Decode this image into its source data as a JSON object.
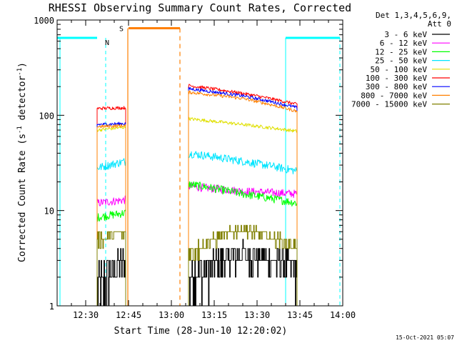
{
  "chart_data": {
    "type": "line",
    "title": "RHESSI Observing Summary Count Rates, Corrected",
    "xlabel": "Start Time (28-Jun-10 12:20:02)",
    "ylabel": "Corrected Count Rate (s",
    "ylabel_sup1": "-1",
    "ylabel_mid": " detector",
    "ylabel_sup2": "-1",
    "ylabel_end": ")",
    "yscale": "log",
    "ylim": [
      1,
      1000
    ],
    "y_ticks": [
      {
        "v": 1,
        "label": "1"
      },
      {
        "v": 10,
        "label": "10"
      },
      {
        "v": 100,
        "label": "100"
      },
      {
        "v": 1000,
        "label": "1000"
      }
    ],
    "xlim": [
      "12:20",
      "14:00"
    ],
    "x_ticks": [
      "12:30",
      "12:45",
      "13:00",
      "13:15",
      "13:30",
      "13:45",
      "14:00"
    ],
    "grid": false,
    "legend_header": [
      "Det 1,3,4,5,6,9,",
      "Att 0"
    ],
    "legend_position": "right",
    "footer_timestamp": "15-Oct-2021 05:07",
    "markers": {
      "N": "N",
      "S": "S"
    },
    "intervals": {
      "night_color": "#00ffff",
      "saa_color": "#ff8000",
      "night_segments": [
        [
          "12:20",
          "12:34"
        ],
        [
          "13:40",
          "13:59"
        ]
      ],
      "night_level": 650,
      "night_lines": [
        "12:21",
        "12:37",
        "13:40",
        "13:59"
      ],
      "saa_segment": [
        "12:45",
        "13:03"
      ],
      "saa_level": 820,
      "saa_lines": [
        "12:45",
        "13:03"
      ]
    },
    "observation_blocks": [
      [
        "12:34",
        "12:44"
      ],
      [
        "13:06",
        "13:44"
      ]
    ],
    "series": [
      {
        "name": "3 - 6 keV",
        "color": "#000000",
        "block1": [
          1.5,
          3
        ],
        "block2": [
          2.0,
          3.5,
          2.5
        ]
      },
      {
        "name": "6 - 12 keV",
        "color": "#ff00ff",
        "block1": [
          12,
          13
        ],
        "block2": [
          18,
          16,
          15
        ]
      },
      {
        "name": "12 - 25 keV",
        "color": "#00ff00",
        "block1": [
          8.5,
          9.5
        ],
        "block2": [
          19,
          15,
          12
        ]
      },
      {
        "name": "25 - 50 keV",
        "color": "#00e5ff",
        "block1": [
          28,
          33
        ],
        "block2": [
          40,
          33,
          26
        ]
      },
      {
        "name": "50 - 100 keV",
        "color": "#e0e000",
        "block1": [
          70,
          75
        ],
        "block2": [
          92,
          80,
          68
        ]
      },
      {
        "name": "100 - 300 keV",
        "color": "#ff0000",
        "block1": [
          118,
          120
        ],
        "block2": [
          205,
          170,
          130
        ]
      },
      {
        "name": "300 - 800 keV",
        "color": "#0000ff",
        "block1": [
          80,
          82
        ],
        "block2": [
          190,
          160,
          120
        ]
      },
      {
        "name": "800 - 7000 keV",
        "color": "#ff8000",
        "block1": [
          76,
          78
        ],
        "block2": [
          175,
          150,
          110
        ]
      },
      {
        "name": "7000 - 15000 keV",
        "color": "#808000",
        "block1": [
          5,
          6
        ],
        "block2": [
          3.5,
          6.5,
          4.0
        ]
      }
    ]
  }
}
